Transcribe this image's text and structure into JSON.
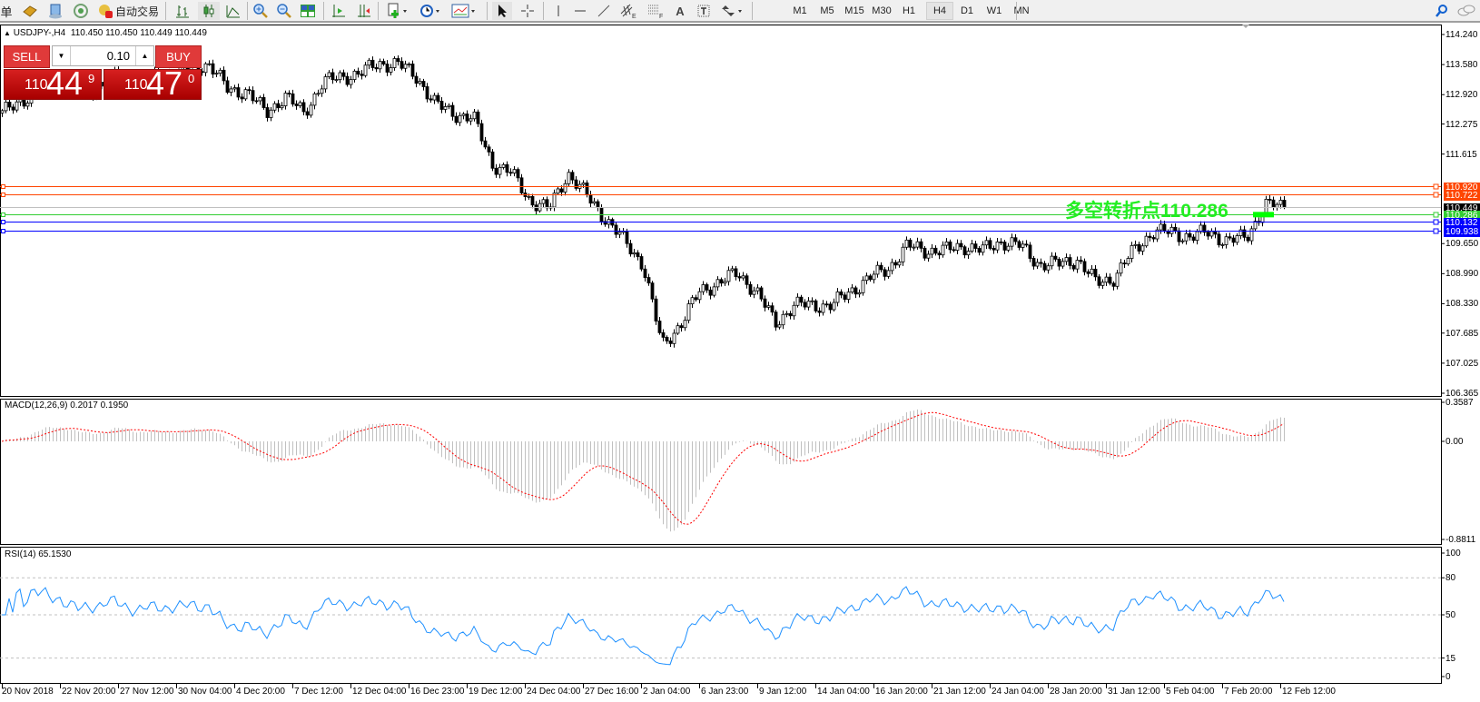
{
  "toolbar": {
    "left_text": "单",
    "auto_trading_label": "自动交易",
    "timeframes": [
      "M1",
      "M5",
      "M15",
      "M30",
      "H1",
      "H4",
      "D1",
      "W1",
      "MN"
    ],
    "active_timeframe": "H4"
  },
  "chart": {
    "title": "USDJPY-,H4",
    "ohlc": "110.450 110.450 110.449 110.449",
    "price_ticks": [
      "114.240",
      "113.580",
      "112.920",
      "112.275",
      "111.615",
      "110.920",
      "110.722",
      "110.449",
      "110.286",
      "110.132",
      "109.938",
      "109.650",
      "108.990",
      "108.330",
      "107.685",
      "107.025",
      "106.365"
    ],
    "price_range": [
      106.365,
      114.24
    ],
    "hlines": [
      {
        "price": 110.92,
        "label": "110.920",
        "color": "#ff4500",
        "label_bg": "#ff4500",
        "label_fg": "#ffffff"
      },
      {
        "price": 110.722,
        "label": "110.722",
        "color": "#ff4500",
        "label_bg": "#ff4500",
        "label_fg": "#ffffff"
      },
      {
        "price": 110.449,
        "label": "110.449",
        "color": "#c0c0c0",
        "label_bg": "#000000",
        "label_fg": "#ffffff"
      },
      {
        "price": 110.286,
        "label": "110.286",
        "color": "#32cd32",
        "label_bg": "#32cd32",
        "label_fg": "#ffffff"
      },
      {
        "price": 110.132,
        "label": "110.132",
        "color": "#0000ff",
        "label_bg": "#0000ff",
        "label_fg": "#ffffff"
      },
      {
        "price": 109.938,
        "label": "109.938",
        "color": "#0000ff",
        "label_bg": "#0000ff",
        "label_fg": "#ffffff"
      }
    ],
    "pivot_text_cn": "多空转折点",
    "pivot_text_value": "110.286",
    "close_path": [
      112.5,
      112.8,
      113.0,
      113.1,
      112.9,
      113.1,
      113.3,
      113.2,
      113.3,
      113.4,
      113.5,
      113.6,
      113.0,
      113.0,
      112.5,
      112.9,
      112.5,
      113.2,
      113.3,
      113.4,
      113.6,
      113.6,
      113.3,
      112.7,
      112.5,
      112.4,
      111.4,
      111.2,
      110.6,
      110.4,
      111.2,
      110.7,
      110.2,
      109.7,
      109.2,
      107.4,
      107.9,
      108.6,
      108.8,
      109.0,
      108.6,
      107.9,
      108.3,
      108.3,
      108.3,
      108.6,
      108.9,
      109.1,
      109.6,
      109.5,
      109.5,
      109.6,
      109.5,
      109.7,
      109.6,
      109.2,
      109.2,
      109.3,
      108.8,
      108.9,
      109.5,
      109.9,
      109.9,
      109.8,
      109.9,
      109.7,
      109.8,
      110.5,
      110.45
    ],
    "time_labels": [
      "20 Nov 2018",
      "22 Nov 20:00",
      "27 Nov 12:00",
      "30 Nov 04:00",
      "4 Dec 20:00",
      "7 Dec 12:00",
      "12 Dec 04:00",
      "16 Dec 23:00",
      "19 Dec 12:00",
      "24 Dec 04:00",
      "27 Dec 16:00",
      "2 Jan 04:00",
      "6 Jan 23:00",
      "9 Jan 12:00",
      "14 Jan 04:00",
      "16 Jan 20:00",
      "21 Jan 12:00",
      "24 Jan 04:00",
      "28 Jan 20:00",
      "31 Jan 12:00",
      "5 Feb 04:00",
      "7 Feb 20:00",
      "12 Feb 12:00"
    ],
    "bull_color": "#ffffff",
    "bear_color": "#000000"
  },
  "trade_panel": {
    "sell_label": "SELL",
    "buy_label": "BUY",
    "lot": "0.10",
    "sell_prefix": "110",
    "sell_big": "44",
    "sell_sup": "9",
    "buy_prefix": "110",
    "buy_big": "47",
    "buy_sup": "0"
  },
  "macd": {
    "label": "MACD(12,26,9) 0.2017 0.1950",
    "ticks": [
      "0.3587",
      "0.00",
      "-0.8811"
    ],
    "range": [
      -0.8811,
      0.3587
    ],
    "hist_color": "#c0c0c0",
    "signal_color": "#ff0000"
  },
  "rsi": {
    "label": "RSI(14) 65.1530",
    "ticks": [
      "100",
      "80",
      "50",
      "15",
      "0"
    ],
    "levels": [
      80,
      50,
      15
    ],
    "line_color": "#1e90ff"
  }
}
